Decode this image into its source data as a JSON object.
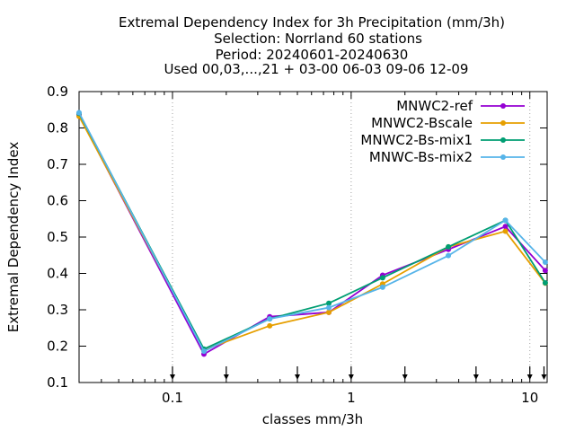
{
  "chart_data": {
    "type": "line",
    "title_lines": [
      "Extremal Dependency Index  for 3h Precipitation (mm/3h)",
      "Selection: Norrland     60 stations",
      "Period: 20240601-20240630",
      "Used 00,03,...,21 + 03-00 06-03 09-06 12-09"
    ],
    "xlabel": "classes mm/3h",
    "ylabel": "Extremal Dependency Index",
    "xscale": "log",
    "xlim": [
      0.03,
      12.5
    ],
    "ylim": [
      0.1,
      0.9
    ],
    "xticks": [
      0.1,
      1,
      10
    ],
    "xtick_labels": [
      "0.1",
      "1",
      "10"
    ],
    "yticks": [
      0.1,
      0.2,
      0.3,
      0.4,
      0.5,
      0.6,
      0.7,
      0.8,
      0.9
    ],
    "ytick_labels": [
      "0.1",
      "0.2",
      "0.3",
      "0.4",
      "0.5",
      "0.6",
      "0.7",
      "0.8",
      "0.9"
    ],
    "threshold_arrows": [
      0.1,
      0.2,
      0.5,
      1,
      2,
      5,
      10,
      12
    ],
    "grid": "vertical dotted at decades",
    "legend_position": "top-right",
    "x": [
      0.03,
      0.15,
      0.35,
      0.75,
      1.5,
      3.5,
      7.3,
      12.2
    ],
    "series": [
      {
        "name": "MNWC2-ref",
        "color": "#9400d3",
        "values": [
          0.835,
          0.178,
          0.281,
          0.293,
          0.395,
          0.466,
          0.529,
          0.408
        ]
      },
      {
        "name": "MNWC2-Bscale",
        "color": "#e69f00",
        "values": [
          0.832,
          0.19,
          0.256,
          0.293,
          0.371,
          0.473,
          0.516,
          0.373
        ]
      },
      {
        "name": "MNWC2-Bs-mix1",
        "color": "#009e73",
        "values": [
          0.84,
          0.192,
          0.275,
          0.318,
          0.388,
          0.473,
          0.546,
          0.374
        ]
      },
      {
        "name": "MNWC-Bs-mix2",
        "color": "#56b4e9",
        "values": [
          0.842,
          0.186,
          0.275,
          0.306,
          0.362,
          0.449,
          0.546,
          0.431
        ]
      }
    ]
  }
}
